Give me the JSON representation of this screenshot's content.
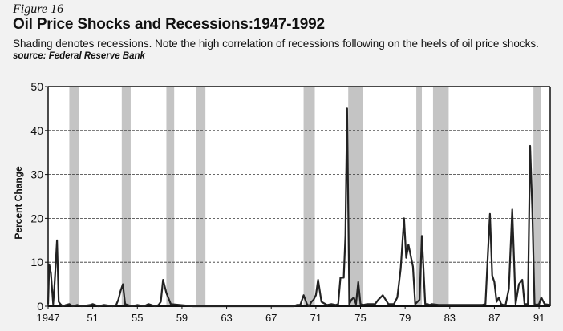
{
  "figure_label": "Figure 16",
  "title": "Oil Price Shocks and Recessions:1947-1992",
  "subtitle": "Shading denotes recessions.  Note the high correlation of recessions following on the heels of oil price shocks.",
  "source": "source: Federal Reserve Bank",
  "chart_data": {
    "type": "line",
    "title": "Oil Price Shocks and Recessions:1947-1992",
    "ylabel": "Percent Change",
    "xlabel": "",
    "xlim": [
      1947,
      1992
    ],
    "ylim": [
      0,
      50
    ],
    "yticks": [
      0,
      10,
      20,
      30,
      40,
      50
    ],
    "xticks": [
      1947,
      1951,
      1955,
      1959,
      1963,
      1967,
      1971,
      1975,
      1979,
      1983,
      1987,
      1991
    ],
    "xtick_labels": [
      "1947",
      "51",
      "55",
      "59",
      "63",
      "67",
      "71",
      "75",
      "79",
      "83",
      "87",
      "91"
    ],
    "grid": "horizontal dashed",
    "recessions": [
      [
        1948.9,
        1949.8
      ],
      [
        1953.6,
        1954.4
      ],
      [
        1957.6,
        1958.3
      ],
      [
        1960.3,
        1961.1
      ],
      [
        1969.9,
        1970.9
      ],
      [
        1973.9,
        1975.2
      ],
      [
        1980.0,
        1980.5
      ],
      [
        1981.5,
        1982.9
      ],
      [
        1990.5,
        1991.2
      ]
    ],
    "series": [
      {
        "x": [
          1947.0,
          1947.1,
          1947.25,
          1947.45,
          1947.55,
          1947.65,
          1947.8,
          1947.95,
          1948.1,
          1948.3,
          1948.6,
          1948.9,
          1949.2,
          1949.6,
          1950.0,
          1950.8,
          1951.0,
          1951.5,
          1952.0,
          1952.8,
          1953.1,
          1953.3,
          1953.5,
          1953.7,
          1953.9,
          1954.5,
          1955.0,
          1955.6,
          1956.0,
          1956.6,
          1956.9,
          1957.1,
          1957.3,
          1957.6,
          1958.0,
          1960.0,
          1965.0,
          1969.0,
          1969.3,
          1969.6,
          1969.9,
          1970.2,
          1970.4,
          1970.6,
          1970.8,
          1971.0,
          1971.2,
          1971.5,
          1972.0,
          1972.4,
          1972.8,
          1973.0,
          1973.2,
          1973.5,
          1973.65,
          1973.8,
          1974.0,
          1974.2,
          1974.4,
          1974.6,
          1974.8,
          1975.0,
          1975.2,
          1975.6,
          1976.0,
          1976.3,
          1976.6,
          1977.0,
          1977.5,
          1978.0,
          1978.3,
          1978.6,
          1978.9,
          1979.1,
          1979.3,
          1979.5,
          1979.7,
          1979.9,
          1980.1,
          1980.3,
          1980.5,
          1980.8,
          1981.0,
          1981.2,
          1981.4,
          1982.0,
          1983.0,
          1984.0,
          1985.0,
          1985.5,
          1985.9,
          1986.2,
          1986.4,
          1986.6,
          1986.8,
          1987.0,
          1987.2,
          1987.4,
          1987.6,
          1987.8,
          1988.0,
          1988.3,
          1988.6,
          1988.9,
          1989.2,
          1989.5,
          1989.7,
          1990.0,
          1990.2,
          1990.4,
          1990.6,
          1990.8,
          1991.0,
          1991.2,
          1991.5,
          1992.0
        ],
        "y": [
          0.5,
          9.5,
          7.5,
          0.5,
          4.0,
          8.0,
          15.0,
          1.0,
          0.5,
          0.0,
          0.3,
          0.5,
          0.0,
          0.3,
          0.0,
          0.3,
          0.5,
          0.0,
          0.3,
          0.0,
          0.3,
          1.5,
          3.5,
          5.0,
          0.5,
          0.0,
          0.3,
          0.0,
          0.5,
          0.0,
          0.3,
          1.0,
          6.0,
          3.0,
          0.5,
          0.0,
          0.0,
          0.0,
          0.3,
          0.3,
          2.5,
          0.5,
          0.0,
          1.0,
          1.5,
          2.5,
          6.0,
          1.0,
          0.3,
          0.5,
          0.3,
          0.5,
          6.5,
          6.5,
          16.0,
          45.0,
          0.5,
          1.5,
          2.0,
          0.5,
          5.5,
          0.5,
          0.3,
          0.5,
          0.5,
          0.5,
          1.5,
          2.5,
          0.5,
          0.5,
          2.0,
          8.5,
          20.0,
          11.0,
          14.0,
          11.5,
          9.0,
          0.5,
          1.0,
          1.5,
          16.0,
          0.5,
          0.5,
          0.3,
          0.5,
          0.3,
          0.3,
          0.3,
          0.3,
          0.3,
          0.3,
          0.5,
          11.0,
          21.0,
          7.0,
          5.5,
          1.0,
          2.0,
          0.5,
          0.3,
          0.3,
          4.0,
          22.0,
          0.5,
          5.0,
          6.0,
          0.5,
          0.5,
          36.5,
          22.0,
          0.5,
          0.3,
          0.5,
          2.0,
          0.5,
          0.3
        ]
      }
    ]
  }
}
